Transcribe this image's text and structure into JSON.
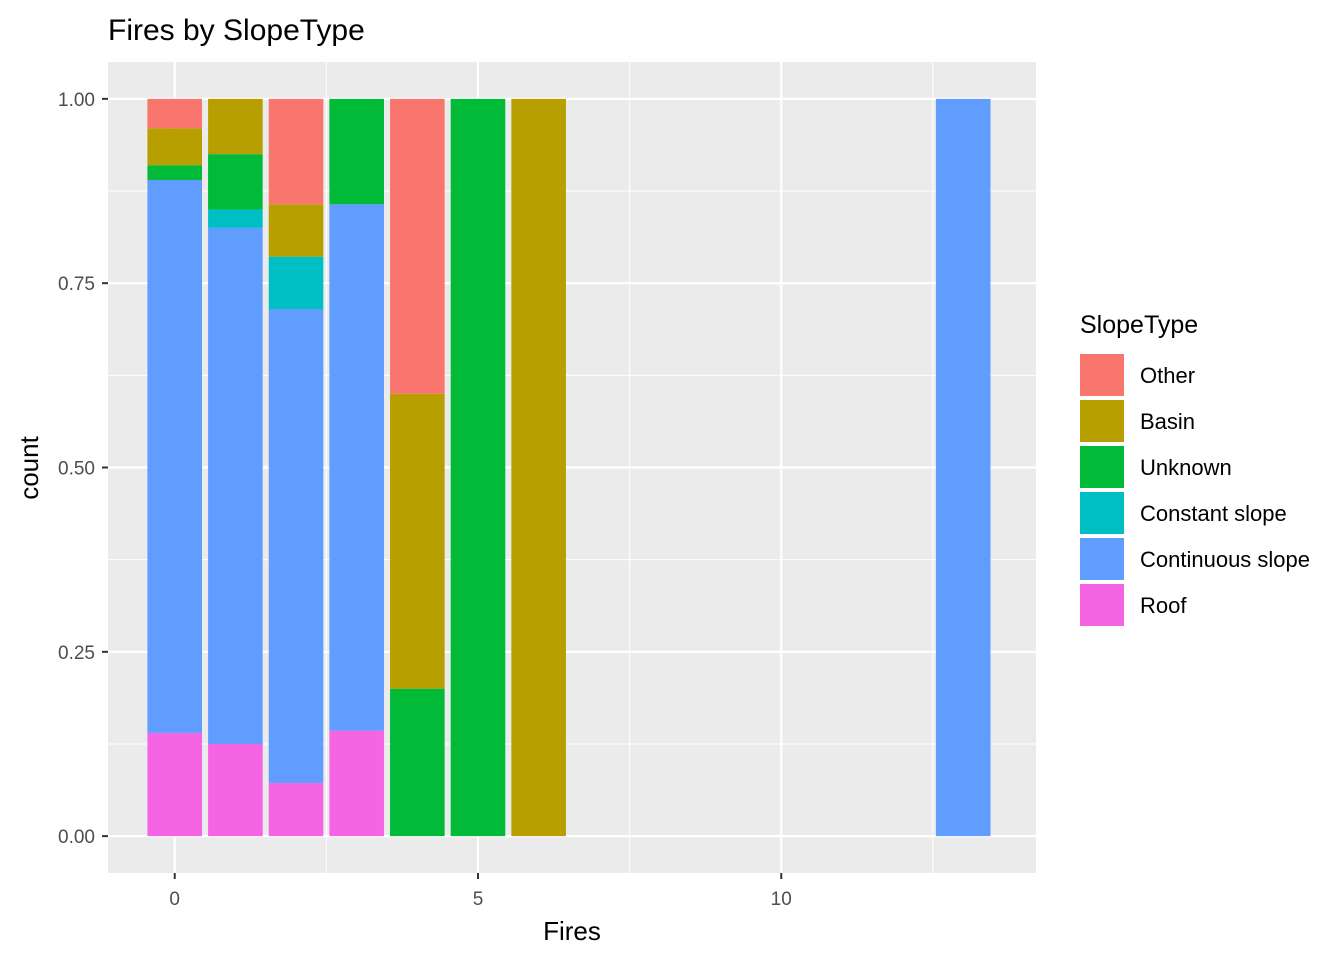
{
  "chart_data": {
    "type": "bar",
    "stacked": "fill",
    "title": "Fires by SlopeType",
    "xlabel": "Fires",
    "ylabel": "count",
    "xlim": [
      -1.1,
      14.2
    ],
    "ylim": [
      -0.05,
      1.05
    ],
    "x_ticks": [
      0,
      5,
      10
    ],
    "x_tick_labels": [
      "0",
      "5",
      "10"
    ],
    "y_ticks": [
      0,
      0.25,
      0.5,
      0.75,
      1.0
    ],
    "y_tick_labels": [
      "0.00",
      "0.25",
      "0.50",
      "0.75",
      "1.00"
    ],
    "grid": true,
    "panel_background": "#ebebeb",
    "legend": {
      "title": "SlopeType",
      "placement": "right",
      "entries": [
        {
          "name": "Other",
          "color": "#F8766D"
        },
        {
          "name": "Basin",
          "color": "#B79F00"
        },
        {
          "name": "Unknown",
          "color": "#00BA38"
        },
        {
          "name": "Constant slope",
          "color": "#00BFC4"
        },
        {
          "name": "Continuous slope",
          "color": "#619CFF"
        },
        {
          "name": "Roof",
          "color": "#F564E3"
        }
      ]
    },
    "x": [
      0,
      1,
      2,
      3,
      4,
      5,
      6,
      13
    ],
    "stack_order_bottom_to_top": [
      "Roof",
      "Continuous slope",
      "Constant slope",
      "Unknown",
      "Basin",
      "Other"
    ],
    "series": [
      {
        "name": "Other",
        "values": [
          0.04,
          0,
          0.143,
          0,
          0.4,
          0,
          0,
          0
        ]
      },
      {
        "name": "Basin",
        "values": [
          0.05,
          0.075,
          0.071,
          0,
          0.4,
          0,
          1.0,
          0
        ]
      },
      {
        "name": "Unknown",
        "values": [
          0.02,
          0.075,
          0,
          0.143,
          0.2,
          1.0,
          0,
          0
        ]
      },
      {
        "name": "Constant slope",
        "values": [
          0,
          0.025,
          0.071,
          0,
          0,
          0,
          0,
          0
        ]
      },
      {
        "name": "Continuous slope",
        "values": [
          0.75,
          0.7,
          0.643,
          0.714,
          0,
          0,
          0,
          1.0
        ]
      },
      {
        "name": "Roof",
        "values": [
          0.14,
          0.125,
          0.072,
          0.143,
          0,
          0,
          0,
          0
        ]
      }
    ]
  }
}
